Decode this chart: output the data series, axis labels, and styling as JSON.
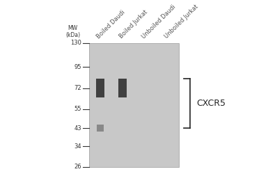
{
  "background_color": "#f0f0f0",
  "gel_bg_color": "#c8c8c8",
  "white_bg": "#ffffff",
  "mw_label": "MW\n(kDa)",
  "mw_markers": [
    130,
    95,
    72,
    55,
    43,
    34,
    26
  ],
  "lane_labels": [
    "Boiled Daudi",
    "Boiled Jurkat",
    "Unboiled Daudi",
    "Unboiled Jurkat"
  ],
  "bracket_label": "CXCR5",
  "band_color": "#303030",
  "band_dark_color": "#222222",
  "label_fontsize": 6,
  "mw_fontsize": 6,
  "bracket_fontsize": 9
}
